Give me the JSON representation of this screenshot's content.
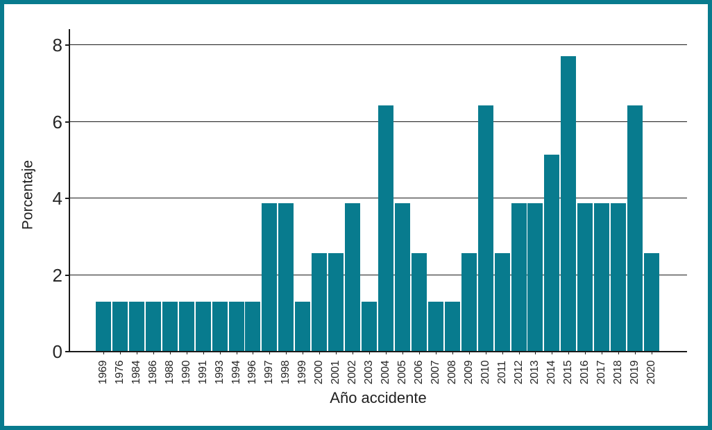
{
  "frame": {
    "border_color": "#087b8e"
  },
  "chart_data": {
    "type": "bar",
    "xlabel": "Año accidente",
    "ylabel": "Porcentaje",
    "bar_color": "#087b8e",
    "axis_color": "#1a1a1a",
    "grid": "horizontal gridlines at each y tick",
    "legend": "none",
    "ylim": [
      0,
      8.4
    ],
    "yticks": [
      "0",
      "2",
      "4",
      "6",
      "8"
    ],
    "categories": [
      "1969",
      "1976",
      "1984",
      "1986",
      "1988",
      "1990",
      "1991",
      "1993",
      "1994",
      "1996",
      "1997",
      "1998",
      "1999",
      "2000",
      "2001",
      "2002",
      "2003",
      "2004",
      "2005",
      "2006",
      "2007",
      "2008",
      "2009",
      "2010",
      "2011",
      "2012",
      "2013",
      "2014",
      "2015",
      "2016",
      "2017",
      "2018",
      "2019",
      "2020"
    ],
    "values": [
      1.28,
      1.28,
      1.28,
      1.28,
      1.28,
      1.28,
      1.28,
      1.28,
      1.28,
      1.28,
      3.85,
      3.85,
      1.28,
      2.56,
      2.56,
      3.85,
      1.28,
      6.41,
      3.85,
      2.56,
      1.28,
      1.28,
      2.56,
      6.41,
      2.56,
      3.85,
      3.85,
      5.13,
      7.69,
      3.85,
      3.85,
      3.85,
      6.41,
      2.56
    ]
  }
}
